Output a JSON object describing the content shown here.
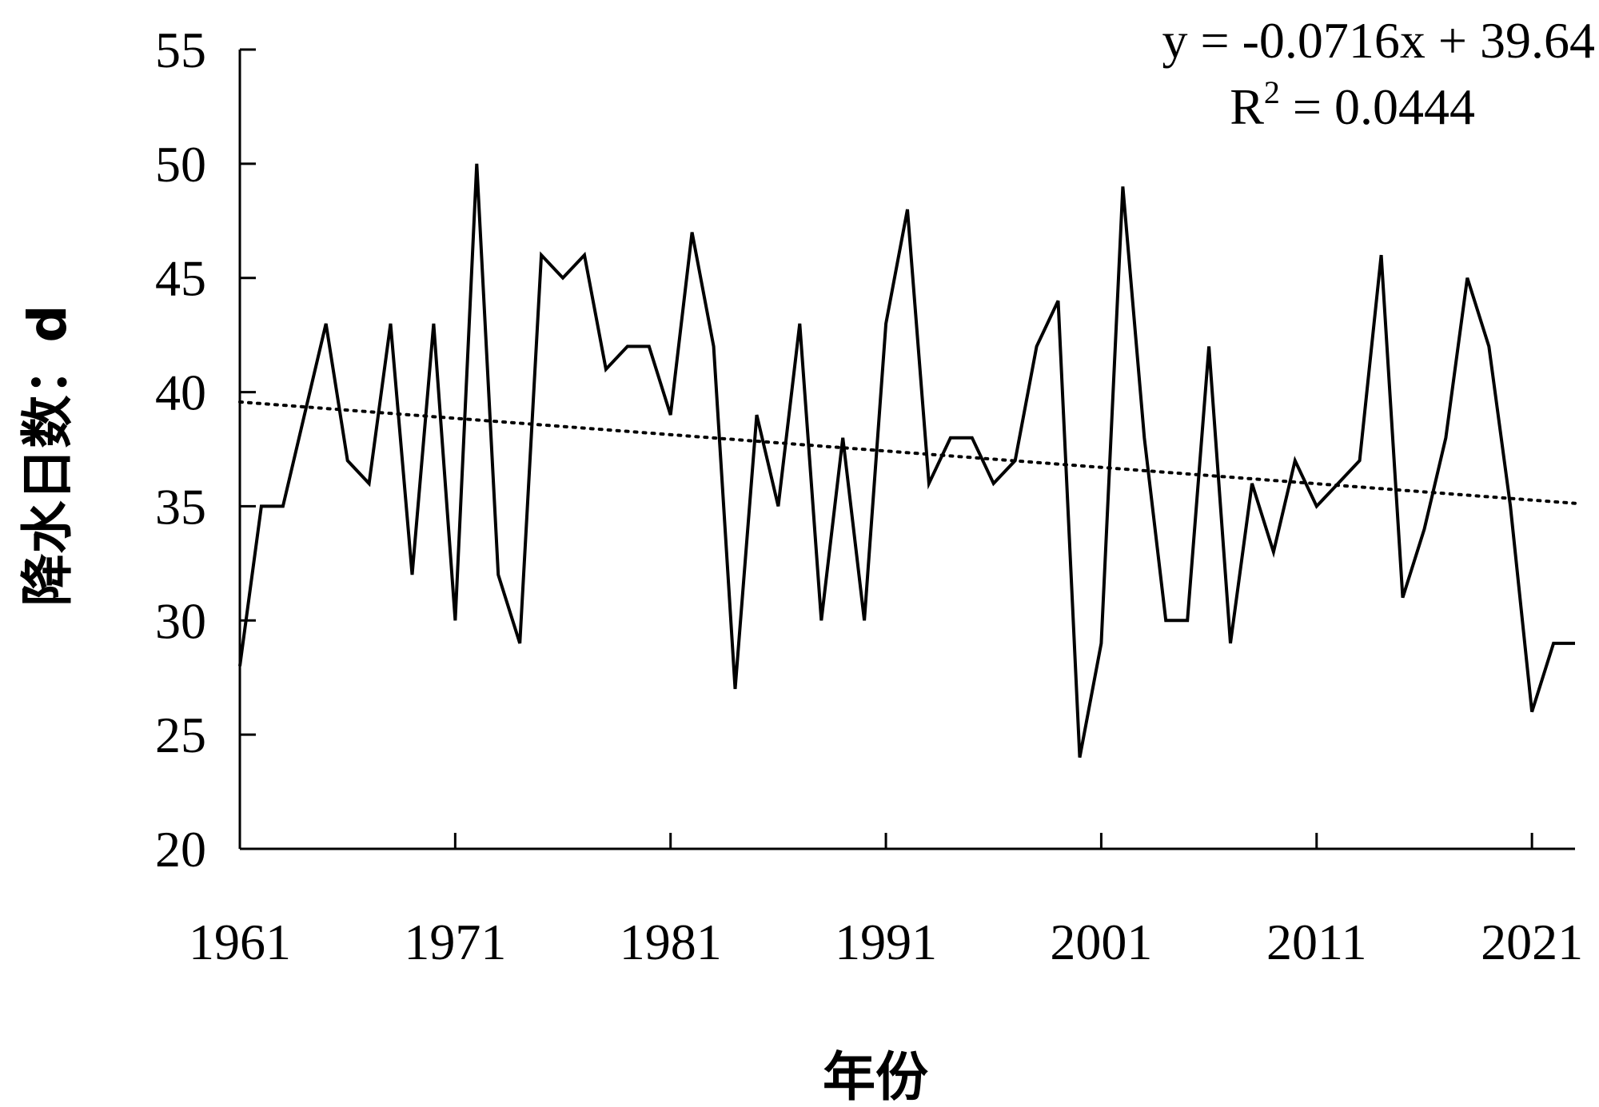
{
  "chart_data": {
    "type": "line",
    "xlabel": "年份",
    "ylabel": "降水日数：d",
    "ylim": [
      20,
      55
    ],
    "yticks": [
      "20",
      "25",
      "30",
      "35",
      "40",
      "45",
      "50",
      "55"
    ],
    "xticks": [
      "1961",
      "1971",
      "1981",
      "1991",
      "2001",
      "2011",
      "2021"
    ],
    "grid": false,
    "x": [
      1961,
      1962,
      1963,
      1964,
      1965,
      1966,
      1967,
      1968,
      1969,
      1970,
      1971,
      1972,
      1973,
      1974,
      1975,
      1976,
      1977,
      1978,
      1979,
      1980,
      1981,
      1982,
      1983,
      1984,
      1985,
      1986,
      1987,
      1988,
      1989,
      1990,
      1991,
      1992,
      1993,
      1994,
      1995,
      1996,
      1997,
      1998,
      1999,
      2000,
      2001,
      2002,
      2003,
      2004,
      2005,
      2006,
      2007,
      2008,
      2009,
      2010,
      2011,
      2012,
      2013,
      2014,
      2015,
      2016,
      2017,
      2018,
      2019,
      2020,
      2021,
      2022,
      2023
    ],
    "series": [
      {
        "values": [
          28,
          35,
          35,
          39,
          43,
          37,
          36,
          43,
          32,
          43,
          30,
          50,
          32,
          29,
          46,
          45,
          46,
          41,
          42,
          42,
          39,
          47,
          42,
          27,
          39,
          35,
          43,
          30,
          38,
          30,
          43,
          48,
          36,
          38,
          38,
          36,
          37,
          42,
          44,
          24,
          29,
          49,
          38,
          30,
          30,
          42,
          29,
          36,
          33,
          37,
          35,
          36,
          37,
          46,
          31,
          34,
          38,
          45,
          42,
          35,
          26,
          29,
          29
        ]
      }
    ],
    "trendline": {
      "style": "dotted",
      "equation": "y = -0.0716x + 39.64",
      "r2_prefix": "R",
      "r2_sup": "2",
      "r2_rest": " = 0.0444",
      "slope": -0.0716,
      "intercept": 39.64
    }
  }
}
